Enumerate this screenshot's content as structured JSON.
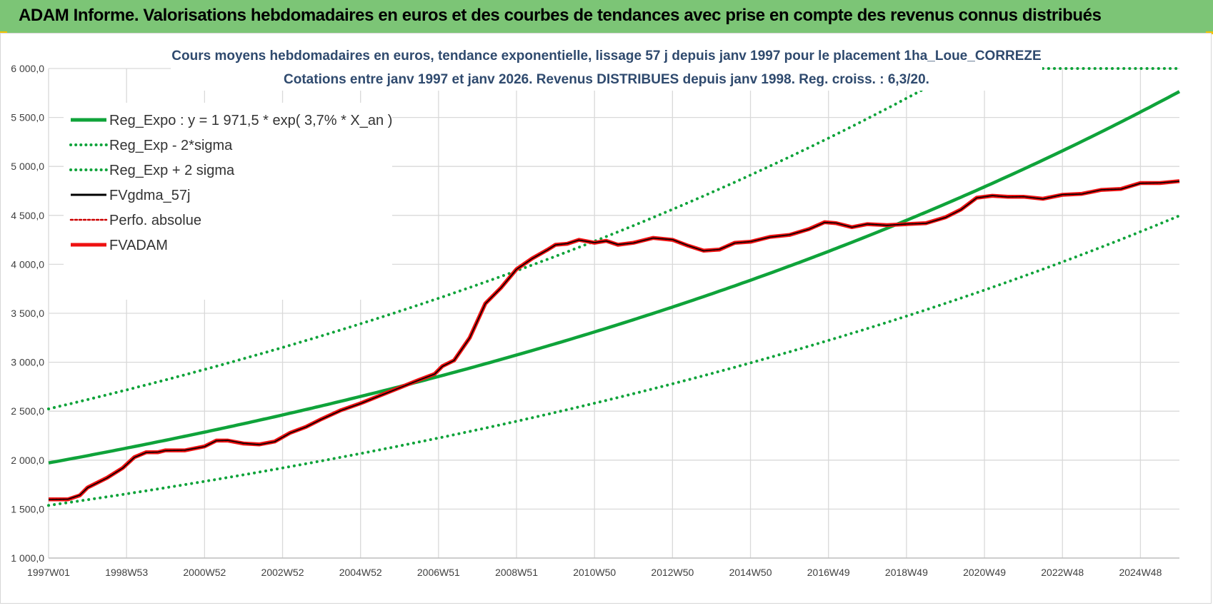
{
  "header": {
    "title": "ADAM Informe. Valorisations hebdomadaires en euros et des courbes de tendances avec prise en compte des revenus connus distribués"
  },
  "colors": {
    "banner": "#7cc576",
    "reg": "#0fa33a",
    "fvgdma": "#000000",
    "fvadam": "#ee1111",
    "perfo": "#cc0000",
    "grid": "#d9d9d9"
  },
  "chart_data": {
    "type": "line",
    "title_lines": [
      "Cours moyens hebdomadaires en euros, tendance exponentielle, lissage 57 j depuis janv 1997 pour le placement 1ha_Loue_CORREZE",
      "Cotations entre janv 1997 et janv 2026. Revenus DISTRIBUES depuis janv 1998. Reg. croiss. : 6,3/20."
    ],
    "xlabel": "",
    "ylabel": "",
    "ylim": [
      1000,
      6000
    ],
    "xlim": [
      1997.0,
      2026.0
    ],
    "y_ticks": [
      1000,
      1500,
      2000,
      2500,
      3000,
      3500,
      4000,
      4500,
      5000,
      5500,
      6000
    ],
    "y_tick_labels": [
      "1 000,0",
      "1 500,0",
      "2 000,0",
      "2 500,0",
      "3 000,0",
      "3 500,0",
      "4 000,0",
      "4 500,0",
      "5 000,0",
      "5 500,0",
      "6 000,0"
    ],
    "x_ticks": [
      1997.0,
      1999.0,
      2001.0,
      2003.0,
      2005.0,
      2007.0,
      2009.0,
      2011.0,
      2013.0,
      2015.0,
      2017.0,
      2019.0,
      2021.0,
      2023.0,
      2025.0
    ],
    "x_tick_labels": [
      "1997W01",
      "1998W53",
      "2000W52",
      "2002W52",
      "2004W52",
      "2006W51",
      "2008W51",
      "2010W50",
      "2012W50",
      "2014W50",
      "2016W49",
      "2018W49",
      "2020W49",
      "2022W48",
      "2024W48"
    ],
    "grid": true,
    "legend_position": "top-left",
    "legend": [
      {
        "name": "Reg_Expo : y = 1 971,5 * exp( 3,7% *  X_an )",
        "style": "solid",
        "color": "#0fa33a"
      },
      {
        "name": "Reg_Exp - 2*sigma",
        "style": "dotted",
        "color": "#0fa33a"
      },
      {
        "name": "Reg_Exp + 2 sigma",
        "style": "dotted",
        "color": "#0fa33a"
      },
      {
        "name": "FVgdma_57j",
        "style": "solid",
        "color": "#000000"
      },
      {
        "name": "Perfo. absolue",
        "style": "dotted",
        "color": "#cc0000"
      },
      {
        "name": "FVADAM",
        "style": "solid",
        "color": "#ee1111"
      }
    ],
    "regression": {
      "a": 1971.5,
      "rate": 0.037,
      "minus_2sigma_factor": 0.78,
      "plus_2sigma_factor": 1.28
    },
    "series": [
      {
        "name": "FVADAM",
        "x": [
          1997.0,
          1997.5,
          1997.8,
          1998.0,
          1998.5,
          1998.9,
          1999.2,
          1999.5,
          1999.8,
          2000.0,
          2000.5,
          2001.0,
          2001.3,
          2001.6,
          2002.0,
          2002.4,
          2002.8,
          2003.2,
          2003.6,
          2004.0,
          2004.5,
          2005.0,
          2005.5,
          2006.0,
          2006.5,
          2006.9,
          2007.1,
          2007.4,
          2007.8,
          2008.2,
          2008.6,
          2009.0,
          2009.4,
          2009.8,
          2010.0,
          2010.3,
          2010.6,
          2011.0,
          2011.3,
          2011.6,
          2012.0,
          2012.5,
          2013.0,
          2013.4,
          2013.8,
          2014.2,
          2014.6,
          2015.0,
          2015.5,
          2016.0,
          2016.5,
          2016.9,
          2017.2,
          2017.6,
          2018.0,
          2018.5,
          2019.0,
          2019.5,
          2020.0,
          2020.4,
          2020.8,
          2021.2,
          2021.6,
          2022.0,
          2022.5,
          2023.0,
          2023.5,
          2024.0,
          2024.5,
          2025.0,
          2025.5,
          2026.0
        ],
        "values": [
          1600,
          1600,
          1640,
          1720,
          1820,
          1920,
          2030,
          2080,
          2080,
          2100,
          2100,
          2140,
          2200,
          2200,
          2170,
          2160,
          2190,
          2280,
          2340,
          2420,
          2510,
          2580,
          2660,
          2740,
          2820,
          2880,
          2960,
          3020,
          3250,
          3600,
          3760,
          3950,
          4060,
          4150,
          4200,
          4210,
          4250,
          4220,
          4240,
          4200,
          4220,
          4270,
          4250,
          4190,
          4140,
          4150,
          4220,
          4230,
          4280,
          4300,
          4360,
          4430,
          4420,
          4380,
          4410,
          4400,
          4410,
          4420,
          4480,
          4560,
          4680,
          4700,
          4690,
          4690,
          4670,
          4710,
          4720,
          4760,
          4770,
          4830,
          4830,
          4850
        ]
      },
      {
        "name": "FVgdma_57j",
        "x": [
          1997.0,
          1997.5,
          1997.8,
          1998.0,
          1998.5,
          1998.9,
          1999.2,
          1999.5,
          1999.8,
          2000.0,
          2000.5,
          2001.0,
          2001.3,
          2001.6,
          2002.0,
          2002.4,
          2002.8,
          2003.2,
          2003.6,
          2004.0,
          2004.5,
          2005.0,
          2005.5,
          2006.0,
          2006.5,
          2006.9,
          2007.1,
          2007.4,
          2007.8,
          2008.2,
          2008.6,
          2009.0,
          2009.4,
          2009.8,
          2010.0,
          2010.3,
          2010.6,
          2011.0,
          2011.3,
          2011.6,
          2012.0,
          2012.5,
          2013.0,
          2013.4,
          2013.8,
          2014.2,
          2014.6,
          2015.0,
          2015.5,
          2016.0,
          2016.5,
          2016.9,
          2017.2,
          2017.6,
          2018.0,
          2018.5,
          2019.0,
          2019.5,
          2020.0,
          2020.4,
          2020.8,
          2021.2,
          2021.6,
          2022.0,
          2022.5,
          2023.0,
          2023.5,
          2024.0,
          2024.5,
          2025.0,
          2025.5,
          2026.0
        ],
        "values": [
          1598,
          1601,
          1642,
          1718,
          1818,
          1918,
          2028,
          2078,
          2082,
          2098,
          2102,
          2138,
          2198,
          2202,
          2172,
          2158,
          2188,
          2278,
          2338,
          2418,
          2508,
          2578,
          2658,
          2738,
          2818,
          2878,
          2958,
          3018,
          3248,
          3598,
          3758,
          3948,
          4058,
          4148,
          4198,
          4212,
          4248,
          4222,
          4238,
          4202,
          4218,
          4268,
          4252,
          4192,
          4138,
          4152,
          4218,
          4232,
          4278,
          4302,
          4358,
          4428,
          4422,
          4378,
          4412,
          4398,
          4412,
          4418,
          4478,
          4558,
          4678,
          4702,
          4688,
          4692,
          4668,
          4712,
          4718,
          4762,
          4768,
          4828,
          4832,
          4848
        ]
      }
    ]
  }
}
